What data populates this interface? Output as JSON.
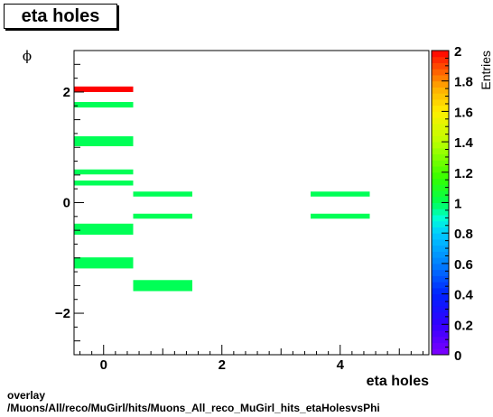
{
  "title": "eta holes",
  "footer": {
    "line1": "overlay",
    "line2": "/Muons/All/reco/MuGirl/hits/Muons_All_reco_MuGirl_hits_etaHolesvsPhi"
  },
  "chart_data": {
    "type": "heatmap",
    "title": "eta holes",
    "xlabel": "eta holes",
    "ylabel": "ϕ",
    "zlabel": "Entries",
    "xlim": [
      -0.5,
      5.5
    ],
    "ylim": [
      -2.75,
      2.75
    ],
    "zlim": [
      0,
      2
    ],
    "x_ticks": [
      0,
      2,
      4
    ],
    "y_ticks": [
      -2,
      0,
      2
    ],
    "z_ticks": [
      0,
      0.2,
      0.4,
      0.6,
      0.8,
      1,
      1.2,
      1.4,
      1.6,
      1.8,
      2
    ],
    "cells": [
      {
        "x": [
          -0.5,
          0.5
        ],
        "y": [
          2.0,
          2.1
        ],
        "value": 2
      },
      {
        "x": [
          -0.5,
          0.5
        ],
        "y": [
          1.72,
          1.82
        ],
        "value": 1
      },
      {
        "x": [
          -0.5,
          0.5
        ],
        "y": [
          1.02,
          1.2
        ],
        "value": 1
      },
      {
        "x": [
          -0.5,
          0.5
        ],
        "y": [
          0.51,
          0.6
        ],
        "value": 1
      },
      {
        "x": [
          -0.5,
          0.5
        ],
        "y": [
          0.31,
          0.4
        ],
        "value": 1
      },
      {
        "x": [
          0.5,
          1.5
        ],
        "y": [
          0.11,
          0.2
        ],
        "value": 1
      },
      {
        "x": [
          0.5,
          1.5
        ],
        "y": [
          -0.29,
          -0.2
        ],
        "value": 1
      },
      {
        "x": [
          -0.5,
          0.5
        ],
        "y": [
          -0.58,
          -0.38
        ],
        "value": 1
      },
      {
        "x": [
          -0.5,
          0.5
        ],
        "y": [
          -1.19,
          -0.99
        ],
        "value": 1
      },
      {
        "x": [
          0.5,
          1.5
        ],
        "y": [
          -1.6,
          -1.4
        ],
        "value": 1
      },
      {
        "x": [
          3.5,
          4.5
        ],
        "y": [
          0.11,
          0.2
        ],
        "value": 1
      },
      {
        "x": [
          3.5,
          4.5
        ],
        "y": [
          -0.29,
          -0.2
        ],
        "value": 1
      }
    ]
  }
}
